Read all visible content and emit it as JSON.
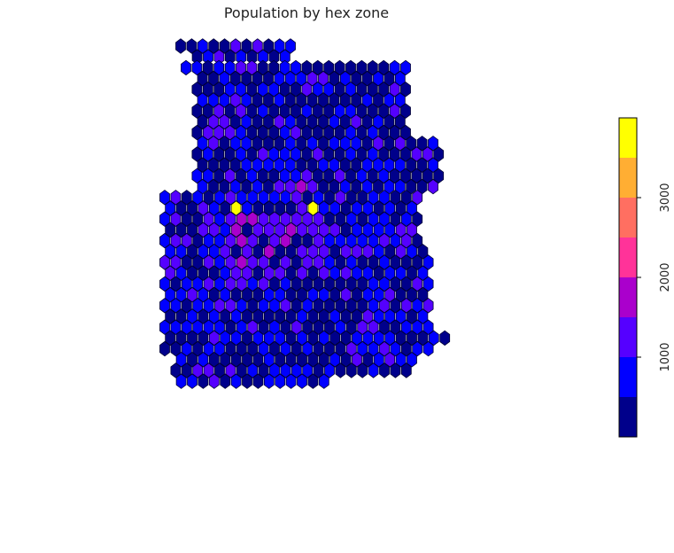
{
  "chart_data": {
    "type": "heatmap",
    "title": "Population by hex zone",
    "colorbar": {
      "ticks": [
        1000,
        2000,
        3000
      ],
      "tick_labels": [
        "1000",
        "2000",
        "3000"
      ],
      "range": [
        0,
        4000
      ],
      "colors": [
        "#00008B",
        "#0000FF",
        "#5500FF",
        "#AA00CC",
        "#FF3399",
        "#FF6F61",
        "#FFAE33",
        "#FFFF00"
      ],
      "orientation": "vertical",
      "placement": "right"
    },
    "cell_edge_color": "#000033",
    "hex_rows": [
      {
        "row": 0,
        "cols": [
          0,
          10
        ]
      },
      {
        "row": 1,
        "cols": [
          1,
          9
        ]
      },
      {
        "row": 2,
        "cols": [
          0,
          20
        ]
      },
      {
        "row": 3,
        "cols": [
          1,
          19
        ]
      },
      {
        "row": 4,
        "cols": [
          1,
          20
        ]
      },
      {
        "row": 5,
        "cols": [
          1,
          19
        ]
      },
      {
        "row": 6,
        "cols": [
          1,
          20
        ]
      },
      {
        "row": 7,
        "cols": [
          1,
          19
        ]
      },
      {
        "row": 8,
        "cols": [
          1,
          20
        ]
      },
      {
        "row": 9,
        "cols": [
          1,
          22
        ]
      },
      {
        "row": 10,
        "cols": [
          1,
          23
        ]
      },
      {
        "row": 11,
        "cols": [
          1,
          22
        ]
      },
      {
        "row": 12,
        "cols": [
          1,
          23
        ]
      },
      {
        "row": 13,
        "cols": [
          1,
          22
        ]
      },
      {
        "row": 14,
        "cols": [
          0,
          23
        ]
      },
      {
        "row": 15,
        "cols": [
          0,
          22
        ]
      },
      {
        "row": 16,
        "cols": [
          0,
          23
        ]
      },
      {
        "row": 17,
        "cols": [
          0,
          22
        ]
      },
      {
        "row": 18,
        "cols": [
          0,
          23
        ]
      },
      {
        "row": 19,
        "cols": [
          0,
          23
        ]
      },
      {
        "row": 20,
        "cols": [
          0,
          24
        ]
      },
      {
        "row": 21,
        "cols": [
          0,
          23
        ]
      },
      {
        "row": 22,
        "cols": [
          0,
          24
        ]
      },
      {
        "row": 23,
        "cols": [
          0,
          23
        ]
      },
      {
        "row": 24,
        "cols": [
          0,
          24
        ]
      },
      {
        "row": 25,
        "cols": [
          0,
          23
        ]
      },
      {
        "row": 26,
        "cols": [
          0,
          24
        ]
      },
      {
        "row": 27,
        "cols": [
          0,
          25
        ]
      },
      {
        "row": 28,
        "cols": [
          0,
          24
        ]
      },
      {
        "row": 29,
        "cols": [
          1,
          22
        ]
      },
      {
        "row": 30,
        "cols": [
          1,
          22
        ]
      },
      {
        "row": 31,
        "cols": [
          1,
          14
        ]
      }
    ],
    "hotspots": [
      {
        "row": 15,
        "col": 6,
        "value": 3900
      },
      {
        "row": 15,
        "col": 13,
        "value": 3950
      },
      {
        "row": 16,
        "col": 7,
        "value": 1800
      },
      {
        "row": 16,
        "col": 8,
        "value": 1600
      },
      {
        "row": 17,
        "col": 6,
        "value": 1900
      },
      {
        "row": 17,
        "col": 11,
        "value": 1500
      },
      {
        "row": 18,
        "col": 7,
        "value": 1700
      },
      {
        "row": 19,
        "col": 9,
        "value": 1800
      },
      {
        "row": 13,
        "col": 10,
        "value": 1800
      },
      {
        "row": 12,
        "col": 14,
        "value": 1400
      },
      {
        "row": 14,
        "col": 16,
        "value": 1400
      },
      {
        "row": 18,
        "col": 11,
        "value": 1600
      },
      {
        "row": 20,
        "col": 7,
        "value": 1600
      },
      {
        "row": 8,
        "col": 3,
        "value": 1200
      },
      {
        "row": 8,
        "col": 4,
        "value": 1300
      }
    ]
  }
}
